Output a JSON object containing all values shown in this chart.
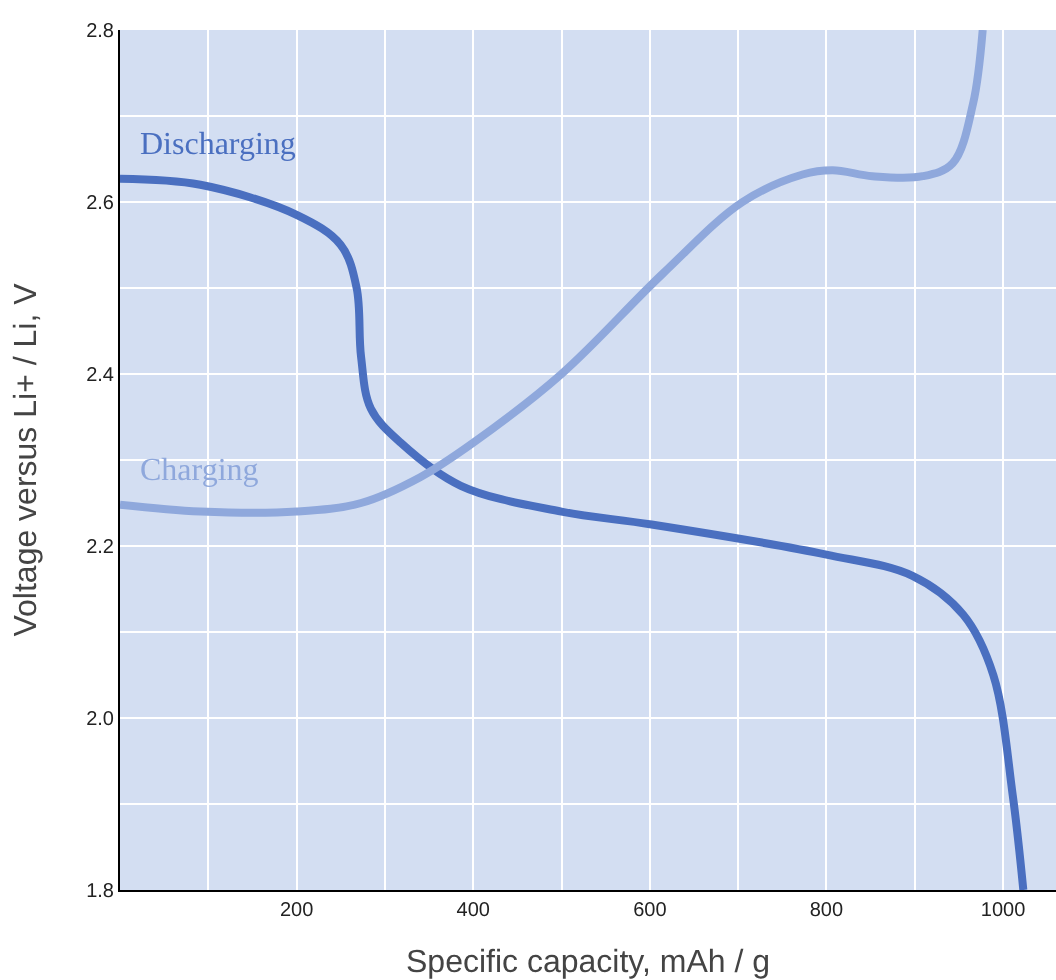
{
  "chart_data": {
    "type": "line",
    "xlabel": "Specific capacity, mAh / g",
    "ylabel": "Voltage versus Li+ / Li, V",
    "xlim": [
      0,
      1060
    ],
    "ylim": [
      1.8,
      2.8
    ],
    "xticks": [
      {
        "value": 100,
        "label": null
      },
      200,
      {
        "value": 300,
        "label": null
      },
      400,
      {
        "value": 500,
        "label": null
      },
      600,
      {
        "value": 700,
        "label": null
      },
      800,
      {
        "value": 900,
        "label": null
      },
      1000
    ],
    "yticks": [
      1.8,
      {
        "value": 1.9,
        "label": null
      },
      "2.0",
      {
        "value": 2.1,
        "label": null
      },
      2.2,
      {
        "value": 2.3,
        "label": null
      },
      2.4,
      {
        "value": 2.5,
        "label": null
      },
      2.6,
      {
        "value": 2.7,
        "label": null
      },
      2.8
    ],
    "grid": true,
    "legend": false,
    "marker": "none",
    "line_style": "solid",
    "series": [
      {
        "name": "Discharging",
        "color": "#4a6fc0",
        "x": [
          0,
          91,
          200,
          250,
          268,
          273,
          284,
          318,
          386,
          500,
          602,
          800,
          898,
          955,
          989,
          1011,
          1023
        ],
        "values": [
          2.627,
          2.62,
          2.585,
          2.55,
          2.5,
          2.42,
          2.36,
          2.32,
          2.27,
          2.24,
          2.225,
          2.19,
          2.165,
          2.12,
          2.05,
          1.91,
          1.8
        ]
      },
      {
        "name": "Charging",
        "color": "#8fa8dc",
        "x": [
          0,
          91,
          200,
          273,
          340,
          400,
          500,
          614,
          705,
          773,
          807,
          852,
          909,
          943,
          966,
          977
        ],
        "values": [
          2.248,
          2.24,
          2.24,
          2.25,
          2.28,
          2.32,
          2.4,
          2.516,
          2.6,
          2.632,
          2.637,
          2.63,
          2.63,
          2.645,
          2.714,
          2.8
        ]
      }
    ]
  }
}
